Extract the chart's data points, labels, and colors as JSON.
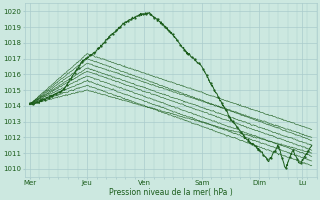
{
  "bg_color": "#cce8e0",
  "grid_color": "#aacccc",
  "line_color": "#1a5c1a",
  "xlabel": "Pression niveau de la mer( hPa )",
  "xtick_labels": [
    "Mer",
    "Jeu",
    "Ven",
    "Sam",
    "Dim",
    "Lu"
  ],
  "xtick_positions": [
    0,
    24,
    48,
    72,
    96,
    114
  ],
  "ylim": [
    1009.5,
    1020.5
  ],
  "yticks": [
    1010,
    1011,
    1012,
    1013,
    1014,
    1015,
    1016,
    1017,
    1018,
    1019,
    1020
  ],
  "xlim": [
    -2,
    120
  ],
  "line_width": 0.7,
  "marker_size": 1.2,
  "figsize": [
    3.2,
    2.0
  ],
  "dpi": 100
}
